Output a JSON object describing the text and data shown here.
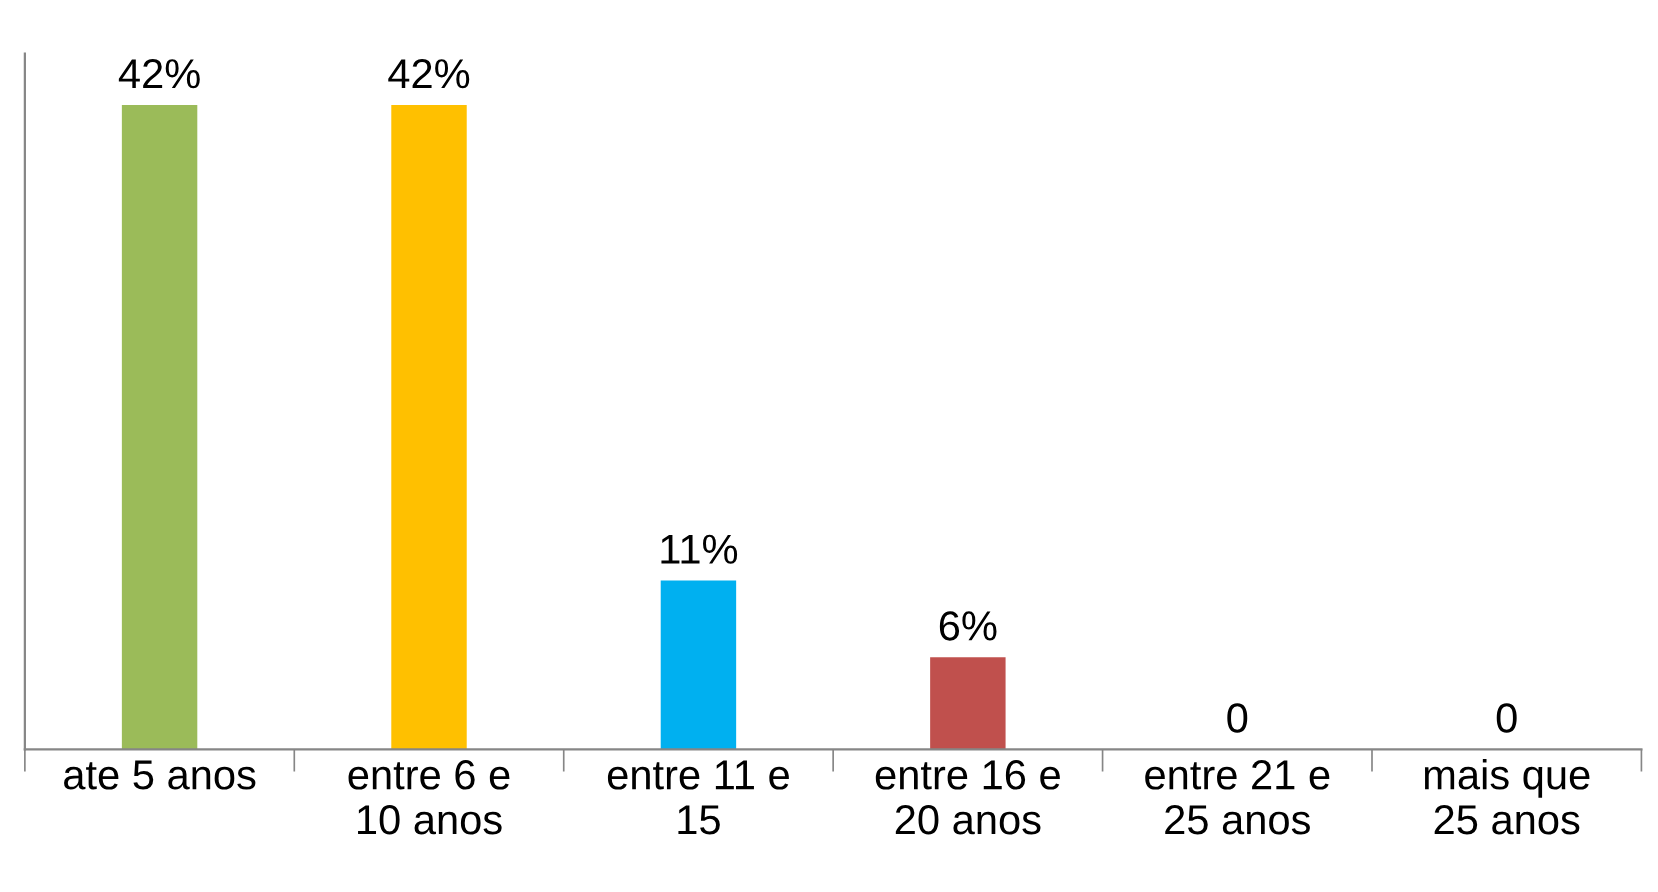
{
  "chart_data": {
    "type": "bar",
    "categories": [
      "ate 5 anos",
      "entre 6 e\n10 anos",
      "entre 11 e\n15",
      "entre 16 e\n20 anos",
      "entre 21 e\n25 anos",
      "mais que\n25 anos"
    ],
    "values": [
      42,
      42,
      11,
      6,
      0,
      0
    ],
    "colors": [
      "#9bbb59",
      "#ffc000",
      "#00b0f0",
      "#c0504d",
      "#4f81bd",
      "#8064a2"
    ],
    "value_labels": [
      "42%",
      "42%",
      "11%",
      "6%",
      "0",
      "0"
    ],
    "grid": false,
    "legend": false
  }
}
